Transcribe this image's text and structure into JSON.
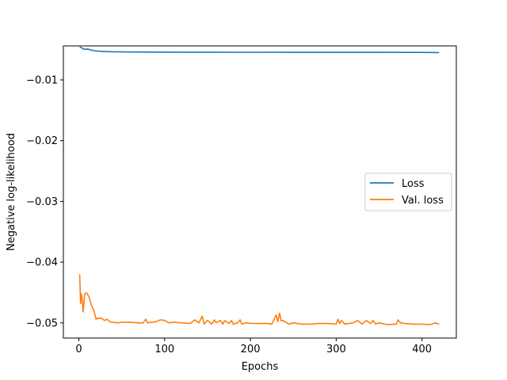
{
  "chart_data": {
    "type": "line",
    "title": "",
    "xlabel": "Epochs",
    "ylabel": "Negative log-likelihood",
    "xlim": [
      -18,
      440
    ],
    "ylim": [
      -0.0525,
      -0.0044
    ],
    "xticks": [
      0,
      100,
      200,
      300,
      400
    ],
    "yticks": [
      -0.01,
      -0.02,
      -0.03,
      -0.04,
      -0.05
    ],
    "xtick_labels": [
      "0",
      "100",
      "200",
      "300",
      "400"
    ],
    "ytick_labels": [
      "−0.01",
      "−0.02",
      "−0.03",
      "−0.04",
      "−0.05"
    ],
    "grid": false,
    "legend_position": "center-right",
    "series": [
      {
        "name": "Loss",
        "color": "#1f77b4",
        "x": [
          1,
          2,
          3,
          4,
          5,
          6,
          8,
          10,
          12,
          14,
          16,
          18,
          20,
          25,
          30,
          40,
          50,
          60,
          70,
          80,
          100,
          120,
          140,
          160,
          180,
          200,
          220,
          240,
          260,
          280,
          300,
          320,
          340,
          360,
          380,
          400,
          410,
          420
        ],
        "y": [
          -0.00465,
          -0.00462,
          -0.00468,
          -0.00478,
          -0.00488,
          -0.00494,
          -0.00496,
          -0.0049,
          -0.00498,
          -0.00508,
          -0.00512,
          -0.00518,
          -0.00522,
          -0.00528,
          -0.00532,
          -0.00536,
          -0.00538,
          -0.0054,
          -0.00541,
          -0.00542,
          -0.00542,
          -0.00543,
          -0.00543,
          -0.00543,
          -0.00544,
          -0.00544,
          -0.00544,
          -0.00545,
          -0.00545,
          -0.00545,
          -0.00545,
          -0.00546,
          -0.00546,
          -0.00546,
          -0.00547,
          -0.00547,
          -0.00548,
          -0.00549
        ]
      },
      {
        "name": "Val. loss",
        "color": "#ff7f0e",
        "x": [
          1,
          2,
          3,
          4,
          5,
          6,
          7,
          8,
          9,
          10,
          11,
          12,
          13,
          14,
          15,
          16,
          17,
          18,
          19,
          20,
          22,
          24,
          26,
          28,
          30,
          33,
          36,
          40,
          45,
          50,
          60,
          70,
          75,
          78,
          80,
          85,
          90,
          95,
          100,
          105,
          110,
          120,
          130,
          135,
          140,
          144,
          146,
          150,
          155,
          158,
          160,
          165,
          168,
          170,
          175,
          178,
          180,
          185,
          188,
          190,
          195,
          200,
          210,
          220,
          225,
          230,
          232,
          234,
          236,
          238,
          240,
          245,
          250,
          260,
          270,
          280,
          290,
          300,
          302,
          304,
          306,
          310,
          320,
          325,
          330,
          335,
          340,
          343,
          346,
          350,
          360,
          370,
          372,
          375,
          380,
          390,
          400,
          410,
          415,
          420
        ],
        "y": [
          -0.042,
          -0.0468,
          -0.0452,
          -0.0462,
          -0.0482,
          -0.0465,
          -0.0452,
          -0.0451,
          -0.0451,
          -0.0452,
          -0.0455,
          -0.0458,
          -0.0462,
          -0.0468,
          -0.0472,
          -0.0475,
          -0.0478,
          -0.0482,
          -0.0488,
          -0.0494,
          -0.0492,
          -0.0493,
          -0.0492,
          -0.0494,
          -0.0496,
          -0.0494,
          -0.0498,
          -0.0499,
          -0.05,
          -0.0499,
          -0.0499,
          -0.05,
          -0.05,
          -0.0494,
          -0.05,
          -0.0499,
          -0.0498,
          -0.0495,
          -0.0496,
          -0.05,
          -0.0499,
          -0.05,
          -0.0501,
          -0.0495,
          -0.05,
          -0.0489,
          -0.0502,
          -0.0496,
          -0.0502,
          -0.0495,
          -0.05,
          -0.0496,
          -0.0502,
          -0.0496,
          -0.0501,
          -0.0496,
          -0.0502,
          -0.05,
          -0.0495,
          -0.0502,
          -0.05,
          -0.0501,
          -0.0501,
          -0.0501,
          -0.0502,
          -0.0487,
          -0.0498,
          -0.0484,
          -0.0497,
          -0.0496,
          -0.0498,
          -0.0502,
          -0.05,
          -0.0502,
          -0.0502,
          -0.0501,
          -0.0501,
          -0.0502,
          -0.0494,
          -0.0501,
          -0.0496,
          -0.0502,
          -0.05,
          -0.0496,
          -0.0502,
          -0.0496,
          -0.0501,
          -0.0496,
          -0.0502,
          -0.05,
          -0.0503,
          -0.0502,
          -0.0495,
          -0.05,
          -0.0501,
          -0.0502,
          -0.0502,
          -0.0503,
          -0.05,
          -0.0502
        ]
      }
    ]
  }
}
